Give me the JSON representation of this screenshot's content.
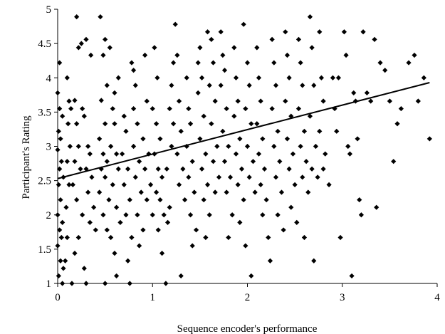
{
  "chart_data": {
    "type": "scatter",
    "xlabel": "Sequence encoder's performance",
    "ylabel": "Participant's Rating",
    "xlim": [
      0,
      4
    ],
    "ylim": [
      1,
      5
    ],
    "x_ticks": [
      "0",
      "1",
      "2",
      "3",
      "4"
    ],
    "y_ticks": [
      "1",
      "1.5",
      "2",
      "2.5",
      "3",
      "3.5",
      "4",
      "4.5",
      "5"
    ],
    "grid": false,
    "legend": "none",
    "marker": "diamond",
    "marker_color": "#000000",
    "trendline": {
      "type": "linear",
      "x": [
        0,
        3.92
      ],
      "y": [
        2.53,
        3.93
      ]
    },
    "series": [
      {
        "points": [
          [
            0.02,
            4.22
          ],
          [
            0.0,
            3.78
          ],
          [
            0.02,
            3.55
          ],
          [
            0.05,
            3.44
          ],
          [
            0.01,
            3.22
          ],
          [
            0.03,
            3.11
          ],
          [
            0.0,
            2.95
          ],
          [
            0.04,
            2.78
          ],
          [
            0.02,
            2.67
          ],
          [
            0.06,
            2.55
          ],
          [
            0.01,
            2.44
          ],
          [
            0.03,
            2.22
          ],
          [
            0.0,
            2.0
          ],
          [
            0.05,
            1.89
          ],
          [
            0.02,
            1.78
          ],
          [
            0.04,
            1.67
          ],
          [
            0.0,
            1.55
          ],
          [
            0.03,
            1.33
          ],
          [
            0.06,
            1.22
          ],
          [
            0.01,
            1.11
          ],
          [
            0.05,
            1.0
          ],
          [
            0.08,
            1.33
          ],
          [
            0.1,
            1.67
          ],
          [
            0.09,
            2.11
          ],
          [
            0.12,
            2.44
          ],
          [
            0.1,
            2.78
          ],
          [
            0.13,
            3.0
          ],
          [
            0.11,
            3.33
          ],
          [
            0.14,
            3.55
          ],
          [
            0.12,
            3.66
          ],
          [
            0.1,
            4.0
          ],
          [
            0.2,
            4.89
          ],
          [
            0.22,
            4.44
          ],
          [
            0.25,
            4.5
          ],
          [
            0.3,
            4.56
          ],
          [
            0.35,
            4.33
          ],
          [
            0.18,
            3.67
          ],
          [
            0.2,
            3.33
          ],
          [
            0.22,
            3.0
          ],
          [
            0.18,
            2.78
          ],
          [
            0.24,
            2.67
          ],
          [
            0.16,
            2.44
          ],
          [
            0.2,
            2.22
          ],
          [
            0.26,
            2.0
          ],
          [
            0.22,
            1.67
          ],
          [
            0.18,
            1.44
          ],
          [
            0.28,
            1.22
          ],
          [
            0.3,
            1.0
          ],
          [
            0.15,
            1.0
          ],
          [
            0.26,
            3.55
          ],
          [
            0.28,
            3.44
          ],
          [
            0.32,
            3.0
          ],
          [
            0.34,
            2.89
          ],
          [
            0.3,
            2.67
          ],
          [
            0.36,
            2.55
          ],
          [
            0.32,
            2.33
          ],
          [
            0.38,
            2.11
          ],
          [
            0.34,
            1.89
          ],
          [
            0.4,
            1.78
          ],
          [
            0.45,
            4.89
          ],
          [
            0.5,
            4.56
          ],
          [
            0.48,
            4.33
          ],
          [
            0.55,
            4.44
          ],
          [
            0.52,
            3.89
          ],
          [
            0.46,
            3.67
          ],
          [
            0.5,
            3.33
          ],
          [
            0.44,
            3.11
          ],
          [
            0.48,
            2.89
          ],
          [
            0.52,
            2.78
          ],
          [
            0.46,
            2.67
          ],
          [
            0.5,
            2.55
          ],
          [
            0.44,
            2.33
          ],
          [
            0.54,
            2.22
          ],
          [
            0.48,
            2.0
          ],
          [
            0.52,
            1.78
          ],
          [
            0.56,
            1.67
          ],
          [
            0.6,
            1.44
          ],
          [
            0.62,
            1.11
          ],
          [
            0.5,
            1.0
          ],
          [
            0.58,
            3.55
          ],
          [
            0.6,
            3.33
          ],
          [
            0.56,
            3.0
          ],
          [
            0.62,
            2.89
          ],
          [
            0.64,
            2.67
          ],
          [
            0.58,
            2.44
          ],
          [
            0.62,
            2.11
          ],
          [
            0.66,
            1.89
          ],
          [
            0.6,
            3.78
          ],
          [
            0.64,
            4.0
          ],
          [
            0.7,
            3.44
          ],
          [
            0.72,
            3.22
          ],
          [
            0.68,
            2.89
          ],
          [
            0.74,
            2.67
          ],
          [
            0.7,
            2.44
          ],
          [
            0.76,
            2.22
          ],
          [
            0.72,
            2.0
          ],
          [
            0.78,
            1.67
          ],
          [
            0.74,
            1.33
          ],
          [
            0.76,
            1.0
          ],
          [
            0.78,
            4.22
          ],
          [
            0.8,
            4.11
          ],
          [
            0.82,
            3.89
          ],
          [
            0.8,
            3.55
          ],
          [
            0.84,
            3.33
          ],
          [
            0.8,
            3.0
          ],
          [
            0.86,
            2.78
          ],
          [
            0.82,
            2.55
          ],
          [
            0.88,
            2.33
          ],
          [
            0.84,
            2.0
          ],
          [
            0.9,
            1.78
          ],
          [
            0.86,
            1.55
          ],
          [
            0.92,
            4.33
          ],
          [
            0.94,
            3.66
          ],
          [
            0.9,
            3.11
          ],
          [
            0.96,
            2.89
          ],
          [
            0.92,
            2.67
          ],
          [
            0.98,
            2.44
          ],
          [
            0.94,
            2.22
          ],
          [
            1.0,
            2.0
          ],
          [
            1.02,
            4.44
          ],
          [
            1.05,
            4.0
          ],
          [
            1.0,
            3.55
          ],
          [
            1.04,
            3.33
          ],
          [
            1.08,
            3.11
          ],
          [
            1.02,
            2.89
          ],
          [
            1.06,
            2.67
          ],
          [
            1.1,
            2.55
          ],
          [
            1.04,
            2.33
          ],
          [
            1.08,
            2.22
          ],
          [
            1.12,
            2.0
          ],
          [
            1.06,
            1.78
          ],
          [
            1.1,
            1.44
          ],
          [
            1.14,
            1.0
          ],
          [
            1.16,
            1.89
          ],
          [
            1.18,
            2.11
          ],
          [
            1.15,
            2.67
          ],
          [
            1.2,
            3.0
          ],
          [
            1.22,
            3.33
          ],
          [
            1.18,
            3.55
          ],
          [
            1.2,
            3.89
          ],
          [
            1.22,
            4.22
          ],
          [
            1.24,
            4.78
          ],
          [
            1.26,
            4.33
          ],
          [
            1.28,
            3.66
          ],
          [
            1.3,
            3.22
          ],
          [
            1.26,
            2.89
          ],
          [
            1.32,
            2.67
          ],
          [
            1.28,
            2.44
          ],
          [
            1.34,
            2.22
          ],
          [
            1.3,
            1.11
          ],
          [
            1.36,
            4.0
          ],
          [
            1.38,
            3.55
          ],
          [
            1.4,
            3.33
          ],
          [
            1.36,
            3.0
          ],
          [
            1.42,
            2.78
          ],
          [
            1.38,
            2.55
          ],
          [
            1.44,
            2.33
          ],
          [
            1.4,
            2.0
          ],
          [
            1.46,
            1.78
          ],
          [
            1.42,
            1.55
          ],
          [
            1.48,
            4.22
          ],
          [
            1.5,
            4.44
          ],
          [
            1.52,
            4.0
          ],
          [
            1.48,
            3.78
          ],
          [
            1.54,
            3.44
          ],
          [
            1.5,
            3.11
          ],
          [
            1.56,
            2.89
          ],
          [
            1.52,
            2.67
          ],
          [
            1.58,
            2.44
          ],
          [
            1.54,
            2.22
          ],
          [
            1.6,
            2.0
          ],
          [
            1.56,
            1.67
          ],
          [
            1.58,
            4.67
          ],
          [
            1.62,
            4.56
          ],
          [
            1.64,
            4.22
          ],
          [
            1.6,
            3.89
          ],
          [
            1.66,
            3.66
          ],
          [
            1.62,
            3.33
          ],
          [
            1.68,
            3.0
          ],
          [
            1.64,
            2.78
          ],
          [
            1.7,
            2.55
          ],
          [
            1.66,
            2.33
          ],
          [
            1.72,
            4.67
          ],
          [
            1.74,
            4.33
          ],
          [
            1.76,
            4.11
          ],
          [
            1.72,
            3.89
          ],
          [
            1.78,
            3.55
          ],
          [
            1.74,
            3.22
          ],
          [
            1.8,
            3.0
          ],
          [
            1.76,
            2.78
          ],
          [
            1.82,
            2.55
          ],
          [
            1.78,
            2.33
          ],
          [
            1.84,
            2.0
          ],
          [
            1.8,
            1.67
          ],
          [
            1.86,
            4.44
          ],
          [
            1.88,
            4.0
          ],
          [
            1.9,
            3.66
          ],
          [
            1.86,
            3.44
          ],
          [
            1.92,
            3.11
          ],
          [
            1.88,
            2.89
          ],
          [
            1.94,
            2.67
          ],
          [
            1.9,
            2.44
          ],
          [
            1.96,
            2.22
          ],
          [
            1.92,
            1.89
          ],
          [
            1.98,
            1.55
          ],
          [
            1.96,
            4.78
          ],
          [
            2.0,
            4.22
          ],
          [
            2.02,
            3.89
          ],
          [
            1.98,
            3.55
          ],
          [
            2.04,
            3.33
          ],
          [
            2.0,
            3.0
          ],
          [
            2.06,
            2.78
          ],
          [
            2.02,
            2.55
          ],
          [
            2.08,
            2.33
          ],
          [
            2.04,
            1.11
          ],
          [
            2.1,
            4.44
          ],
          [
            2.12,
            4.0
          ],
          [
            2.14,
            3.66
          ],
          [
            2.1,
            3.33
          ],
          [
            2.16,
            3.11
          ],
          [
            2.12,
            2.89
          ],
          [
            2.18,
            2.67
          ],
          [
            2.14,
            2.44
          ],
          [
            2.2,
            2.22
          ],
          [
            2.16,
            2.0
          ],
          [
            2.22,
            1.67
          ],
          [
            2.24,
            1.33
          ],
          [
            2.26,
            4.56
          ],
          [
            2.28,
            4.22
          ],
          [
            2.3,
            3.89
          ],
          [
            2.26,
            3.55
          ],
          [
            2.32,
            3.22
          ],
          [
            2.28,
            3.0
          ],
          [
            2.34,
            2.78
          ],
          [
            2.3,
            2.55
          ],
          [
            2.36,
            2.33
          ],
          [
            2.32,
            2.0
          ],
          [
            2.38,
            1.78
          ],
          [
            2.4,
            4.67
          ],
          [
            2.42,
            4.33
          ],
          [
            2.44,
            4.0
          ],
          [
            2.4,
            3.66
          ],
          [
            2.46,
            3.44
          ],
          [
            2.42,
            3.11
          ],
          [
            2.48,
            2.89
          ],
          [
            2.44,
            2.67
          ],
          [
            2.5,
            2.44
          ],
          [
            2.46,
            2.11
          ],
          [
            2.52,
            1.89
          ],
          [
            2.54,
            4.56
          ],
          [
            2.56,
            4.22
          ],
          [
            2.58,
            3.89
          ],
          [
            2.54,
            3.55
          ],
          [
            2.6,
            3.22
          ],
          [
            2.56,
            3.0
          ],
          [
            2.62,
            2.78
          ],
          [
            2.58,
            2.55
          ],
          [
            2.64,
            2.33
          ],
          [
            2.6,
            1.67
          ],
          [
            2.66,
            4.89
          ],
          [
            2.68,
            4.44
          ],
          [
            2.7,
            3.89
          ],
          [
            2.66,
            3.44
          ],
          [
            2.72,
            3.0
          ],
          [
            2.68,
            2.67
          ],
          [
            2.74,
            2.55
          ],
          [
            2.7,
            1.33
          ],
          [
            2.76,
            4.67
          ],
          [
            2.78,
            4.0
          ],
          [
            2.8,
            3.66
          ],
          [
            2.76,
            3.22
          ],
          [
            2.82,
            2.89
          ],
          [
            2.8,
            2.67
          ],
          [
            2.86,
            2.44
          ],
          [
            2.9,
            4.0
          ],
          [
            2.92,
            3.55
          ],
          [
            2.94,
            3.22
          ],
          [
            2.96,
            4.0
          ],
          [
            2.98,
            1.67
          ],
          [
            3.02,
            4.67
          ],
          [
            3.04,
            4.33
          ],
          [
            3.06,
            3.0
          ],
          [
            3.08,
            2.89
          ],
          [
            3.1,
            1.11
          ],
          [
            3.12,
            3.78
          ],
          [
            3.14,
            3.66
          ],
          [
            3.16,
            3.11
          ],
          [
            3.18,
            2.22
          ],
          [
            3.2,
            2.0
          ],
          [
            3.22,
            4.67
          ],
          [
            3.26,
            3.78
          ],
          [
            3.3,
            3.66
          ],
          [
            3.34,
            4.56
          ],
          [
            3.36,
            2.11
          ],
          [
            3.4,
            4.22
          ],
          [
            3.45,
            4.11
          ],
          [
            3.5,
            3.66
          ],
          [
            3.54,
            2.78
          ],
          [
            3.58,
            3.33
          ],
          [
            3.62,
            3.55
          ],
          [
            3.7,
            4.22
          ],
          [
            3.76,
            4.33
          ],
          [
            3.8,
            3.66
          ],
          [
            3.86,
            4.0
          ],
          [
            3.92,
            3.11
          ]
        ]
      }
    ]
  }
}
